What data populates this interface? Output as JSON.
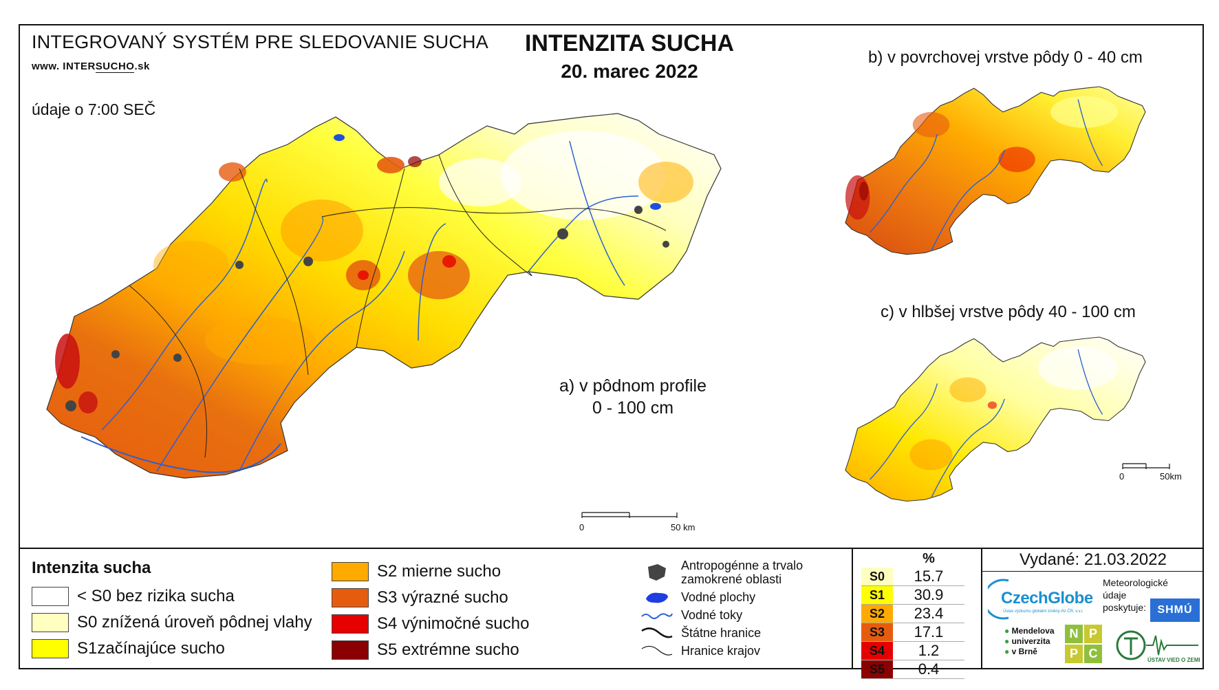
{
  "header": {
    "system_name": "INTEGROVANÝ SYSTÉM PRE SLEDOVANIE SUCHA",
    "url_prefix": "www. INTER",
    "url_brand": "SUCHO",
    "url_suffix": ".sk",
    "data_time": "údaje o 7:00 SEČ",
    "title": "INTENZITA SUCHA",
    "date": "20. marec 2022"
  },
  "maps": {
    "a_label_line1": "a) v pôdnom profile",
    "a_label_line2": "0 - 100 cm",
    "b_label": "b) v povrchovej vrstve pôdy 0 - 40 cm",
    "c_label": "c) v hlbšej vrstve pôdy 40 - 100 cm",
    "scale_main_zero": "0",
    "scale_main_end": "50 km",
    "scale_small_zero": "0",
    "scale_small_end": "50km"
  },
  "legend": {
    "title": "Intenzita sucha",
    "classes": [
      {
        "label": "< S0 bez rizika sucha",
        "color": "#ffffff"
      },
      {
        "label": "S0 znížená úroveň pôdnej vlahy",
        "color": "#ffffc0"
      },
      {
        "label": "S1začínajúce sucho",
        "color": "#ffff00"
      },
      {
        "label": "S2 mierne sucho",
        "color": "#ffaa00"
      },
      {
        "label": "S3 výrazné sucho",
        "color": "#e65c0f"
      },
      {
        "label": "S4 výnimočné sucho",
        "color": "#e60000"
      },
      {
        "label": "S5 extrémne sucho",
        "color": "#8b0000"
      }
    ],
    "symbols": [
      {
        "label_line1": "Antropogénne a trvalo",
        "label_line2": "zamokrené oblasti",
        "icon": "urban-area-icon"
      },
      {
        "label_line1": "Vodné plochy",
        "icon": "water-body-icon"
      },
      {
        "label_line1": "Vodné toky",
        "icon": "river-icon"
      },
      {
        "label_line1": "Štátne hranice",
        "icon": "state-border-icon"
      },
      {
        "label_line1": "Hranice krajov",
        "icon": "region-border-icon"
      }
    ]
  },
  "percent_table": {
    "header": "%",
    "rows": [
      {
        "code": "S0",
        "value": "15.7",
        "color": "#ffffc0"
      },
      {
        "code": "S1",
        "value": "30.9",
        "color": "#ffff00"
      },
      {
        "code": "S2",
        "value": "23.4",
        "color": "#ffaa00"
      },
      {
        "code": "S3",
        "value": "17.1",
        "color": "#e65c0f"
      },
      {
        "code": "S4",
        "value": "1.2",
        "color": "#e60000"
      },
      {
        "code": "S5",
        "value": "0.4",
        "color": "#8b0000"
      }
    ]
  },
  "footer": {
    "issued": "Vydané: 21.03.2022",
    "czechglobe": "CzechGlobe",
    "czechglobe_sub": "Ústav výzkumu globální změny AV ČR, v.v.i.",
    "meteo_line1": "Meteorologické",
    "meteo_line2": "údaje",
    "meteo_line3": "poskytuje:",
    "shmu": "SHMÚ",
    "mendel_line1": "Mendelova",
    "mendel_line2": "univerzita",
    "mendel_line3": "v Brně",
    "npp": [
      "N",
      "P",
      "P",
      "C"
    ],
    "uvz": "ÚSTAV VIED O ZEMI"
  }
}
